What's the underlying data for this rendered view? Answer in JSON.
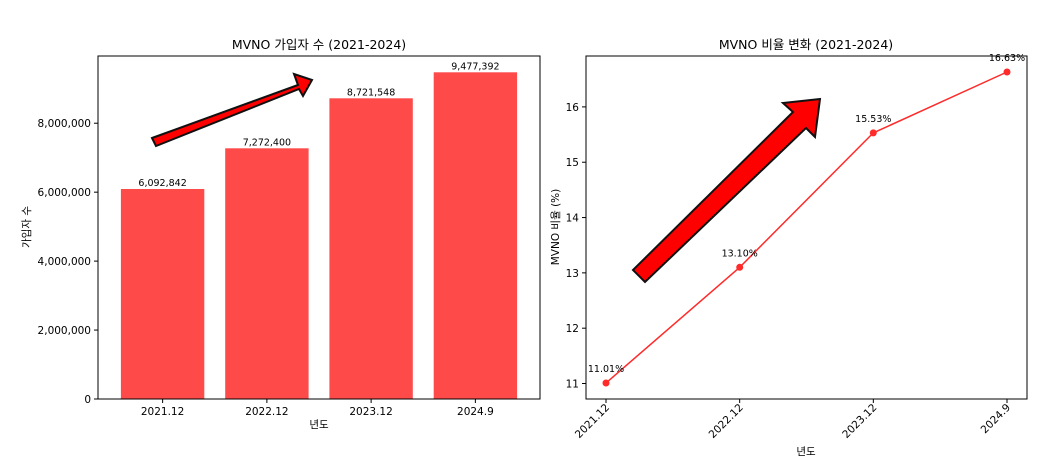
{
  "chart_data": [
    {
      "type": "bar",
      "title": "MVNO 가입자 수 (2021-2024)",
      "xlabel": "년도",
      "ylabel": "가입자 수",
      "categories": [
        "2021.12",
        "2022.12",
        "2023.12",
        "2024.9"
      ],
      "values": [
        6092842,
        7272400,
        8721548,
        9477392
      ],
      "value_labels": [
        "6,092,842",
        "7,272,400",
        "8,721,548",
        "9,477,392"
      ],
      "yticks": [
        0,
        2000000,
        4000000,
        6000000,
        8000000
      ],
      "ytick_labels": [
        "0",
        "2,000,000",
        "4,000,000",
        "6,000,000",
        "8,000,000"
      ],
      "ylim": [
        0,
        9950000
      ],
      "color": "#ff4a4a",
      "grid": false
    },
    {
      "type": "line",
      "title": "MVNO 비율 변화 (2021-2024)",
      "xlabel": "년도",
      "ylabel": "MVNO 비율 (%)",
      "categories": [
        "2021.12",
        "2022.12",
        "2023.12",
        "2024.9"
      ],
      "values": [
        11.01,
        13.1,
        15.53,
        16.63
      ],
      "value_labels": [
        "11.01%",
        "13.10%",
        "15.53%",
        "16.63%"
      ],
      "yticks": [
        11,
        12,
        13,
        14,
        15,
        16
      ],
      "ytick_labels": [
        "11",
        "12",
        "13",
        "14",
        "15",
        "16"
      ],
      "ylim": [
        10.72,
        16.92
      ],
      "color": "#ff2a2a",
      "grid": false
    }
  ],
  "colors": {
    "arrow_fill": "#ff0000",
    "arrow_stroke": "#111111"
  }
}
